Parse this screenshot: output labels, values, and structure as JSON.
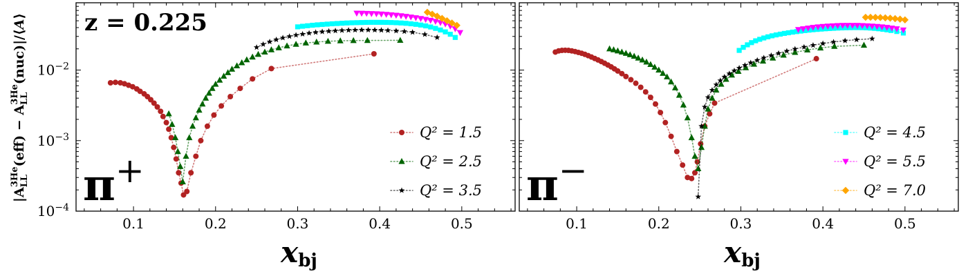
{
  "figure": {
    "y_label": "|A_LL^3He(eff) − A_LL^3He(nuc)|/⟨A⟩",
    "y_label_parts": {
      "bar_open": "|",
      "a1": "A",
      "a1_sub": "LL",
      "a1_sup": "3He",
      "a1_arg": "(eff) − ",
      "a2": "A",
      "a2_sub": "LL",
      "a2_sup": "3He",
      "a2_arg": "(nuc)|/⟨",
      "a3": "A",
      "close": "⟩"
    },
    "z_label": "z = 0.225"
  },
  "chart_data": [
    {
      "type": "scatter",
      "panel_label": "π",
      "panel_label_sup": "+",
      "xlabel": "x",
      "xlabel_sub": "bj",
      "ylabel": "|A_LL^3He(eff) − A_LL^3He(nuc)|/⟨A⟩",
      "yscale": "log",
      "xlim": [
        0.03,
        0.565
      ],
      "ylim": [
        0.0001,
        0.09
      ],
      "xticks": [
        0.1,
        0.2,
        0.3,
        0.4,
        0.5
      ],
      "xtick_labels": [
        "0.1",
        "0.2",
        "0.3",
        "0.4",
        "0.5"
      ],
      "yticks": [
        0.0001,
        0.001,
        0.01
      ],
      "legend_position": "lower-right",
      "series": [
        {
          "name": "Q² = 1.5",
          "legend_label": "Q² = 1.5",
          "in_legend": true,
          "marker": "circle",
          "color": "#b22222",
          "x": [
            0.072,
            0.078,
            0.084,
            0.089,
            0.094,
            0.099,
            0.104,
            0.108,
            0.113,
            0.117,
            0.121,
            0.125,
            0.129,
            0.133,
            0.136,
            0.14,
            0.143,
            0.146,
            0.149,
            0.152,
            0.155,
            0.158,
            0.161,
            0.165,
            0.17,
            0.176,
            0.182,
            0.19,
            0.198,
            0.207,
            0.218,
            0.23,
            0.245,
            0.268,
            0.393
          ],
          "y": [
            0.0066,
            0.0067,
            0.0066,
            0.0064,
            0.0061,
            0.0058,
            0.0054,
            0.005,
            0.0046,
            0.0042,
            0.0038,
            0.0034,
            0.003,
            0.0026,
            0.0022,
            0.0018,
            0.00145,
            0.0011,
            0.0008,
            0.00055,
            0.00035,
            0.00025,
            0.00017,
            0.00019,
            0.00035,
            0.0006,
            0.001,
            0.0016,
            0.0023,
            0.0031,
            0.0042,
            0.0055,
            0.0075,
            0.0105,
            0.017
          ]
        },
        {
          "name": "Q² = 2.5",
          "legend_label": "Q² = 2.5",
          "in_legend": true,
          "marker": "triangle",
          "color": "#006400",
          "x": [
            0.143,
            0.147,
            0.151,
            0.154,
            0.157,
            0.16,
            0.164,
            0.168,
            0.172,
            0.176,
            0.18,
            0.184,
            0.188,
            0.192,
            0.196,
            0.2,
            0.205,
            0.21,
            0.215,
            0.22,
            0.226,
            0.232,
            0.238,
            0.245,
            0.252,
            0.26,
            0.268,
            0.277,
            0.287,
            0.298,
            0.31,
            0.323,
            0.337,
            0.352,
            0.368,
            0.385,
            0.425
          ],
          "y": [
            0.0024,
            0.0017,
            0.0011,
            0.0007,
            0.00043,
            0.00026,
            0.0006,
            0.0011,
            0.0016,
            0.0021,
            0.0027,
            0.0033,
            0.004,
            0.0047,
            0.0055,
            0.0063,
            0.0072,
            0.0082,
            0.0092,
            0.0103,
            0.0115,
            0.0127,
            0.014,
            0.0153,
            0.0167,
            0.018,
            0.0194,
            0.0207,
            0.022,
            0.0232,
            0.0242,
            0.025,
            0.0256,
            0.026,
            0.0262,
            0.0263,
            0.0264
          ]
        },
        {
          "name": "Q² = 3.5",
          "legend_label": "Q² = 3.5",
          "in_legend": true,
          "marker": "star",
          "color": "#000000",
          "x": [
            0.25,
            0.258,
            0.266,
            0.274,
            0.282,
            0.29,
            0.298,
            0.306,
            0.314,
            0.322,
            0.33,
            0.338,
            0.346,
            0.354,
            0.362,
            0.37,
            0.378,
            0.386,
            0.394,
            0.402,
            0.41,
            0.42,
            0.43,
            0.44,
            0.455,
            0.47
          ],
          "y": [
            0.021,
            0.0232,
            0.0252,
            0.027,
            0.0286,
            0.03,
            0.0313,
            0.0324,
            0.0334,
            0.0343,
            0.035,
            0.0356,
            0.0361,
            0.0365,
            0.0368,
            0.037,
            0.0371,
            0.0371,
            0.037,
            0.0368,
            0.0365,
            0.036,
            0.0353,
            0.0344,
            0.032,
            0.029
          ]
        },
        {
          "name": "Q² = 4.5",
          "in_legend": false,
          "marker": "square",
          "color": "#00ffff",
          "x": [
            0.3,
            0.306,
            0.312,
            0.318,
            0.324,
            0.33,
            0.336,
            0.342,
            0.348,
            0.354,
            0.36,
            0.366,
            0.372,
            0.378,
            0.384,
            0.39,
            0.396,
            0.402,
            0.408,
            0.414,
            0.42,
            0.426,
            0.432,
            0.438,
            0.444,
            0.45,
            0.456,
            0.462,
            0.468,
            0.474,
            0.48,
            0.486,
            0.492
          ],
          "y": [
            0.041,
            0.0418,
            0.0425,
            0.0432,
            0.0438,
            0.0443,
            0.0448,
            0.0453,
            0.0457,
            0.0461,
            0.0465,
            0.0468,
            0.047,
            0.0472,
            0.0474,
            0.0475,
            0.0475,
            0.0475,
            0.0474,
            0.0472,
            0.0469,
            0.0465,
            0.046,
            0.0453,
            0.0445,
            0.0435,
            0.0423,
            0.0408,
            0.039,
            0.037,
            0.0348,
            0.0322,
            0.029
          ]
        },
        {
          "name": "Q² = 5.5",
          "in_legend": false,
          "marker": "triangle-down",
          "color": "#ff00ff",
          "x": [
            0.372,
            0.378,
            0.384,
            0.39,
            0.396,
            0.402,
            0.408,
            0.414,
            0.42,
            0.426,
            0.432,
            0.438,
            0.444,
            0.45,
            0.456,
            0.462,
            0.468,
            0.474,
            0.48,
            0.486,
            0.492,
            0.498
          ],
          "y": [
            0.064,
            0.0638,
            0.0636,
            0.0632,
            0.0628,
            0.0622,
            0.0615,
            0.0607,
            0.0598,
            0.0588,
            0.0577,
            0.0565,
            0.0552,
            0.0538,
            0.0523,
            0.0507,
            0.049,
            0.0471,
            0.045,
            0.042,
            0.0385,
            0.034
          ]
        },
        {
          "name": "Q² = 7.0",
          "in_legend": false,
          "marker": "diamond",
          "color": "#ffa500",
          "x": [
            0.458,
            0.464,
            0.47,
            0.476,
            0.482,
            0.488,
            0.494
          ],
          "y": [
            0.066,
            0.062,
            0.058,
            0.054,
            0.05,
            0.0465,
            0.043
          ]
        }
      ]
    },
    {
      "type": "scatter",
      "panel_label": "π",
      "panel_label_sup": "−",
      "xlabel": "x",
      "xlabel_sub": "bj",
      "yscale": "log",
      "xlim": [
        0.03,
        0.565
      ],
      "ylim": [
        0.0001,
        0.09
      ],
      "xticks": [
        0.1,
        0.2,
        0.3,
        0.4,
        0.5
      ],
      "xtick_labels": [
        "0.1",
        "0.2",
        "0.3",
        "0.4",
        "0.5"
      ],
      "yticks": [
        0.0001,
        0.001,
        0.01
      ],
      "legend_position": "lower-right",
      "series": [
        {
          "name": "Q² = 1.5",
          "in_legend": false,
          "marker": "circle",
          "color": "#b22222",
          "x": [
            0.074,
            0.078,
            0.082,
            0.086,
            0.09,
            0.094,
            0.098,
            0.102,
            0.106,
            0.11,
            0.114,
            0.118,
            0.122,
            0.126,
            0.13,
            0.134,
            0.138,
            0.142,
            0.146,
            0.15,
            0.155,
            0.16,
            0.166,
            0.172,
            0.178,
            0.184,
            0.19,
            0.196,
            0.202,
            0.208,
            0.215,
            0.222,
            0.229,
            0.235,
            0.24,
            0.244,
            0.247,
            0.251,
            0.256,
            0.262,
            0.268,
            0.392
          ],
          "y": [
            0.018,
            0.0187,
            0.019,
            0.0191,
            0.019,
            0.0187,
            0.0183,
            0.0178,
            0.0173,
            0.0167,
            0.016,
            0.0153,
            0.0146,
            0.0139,
            0.0132,
            0.0125,
            0.0118,
            0.0111,
            0.0104,
            0.0097,
            0.0089,
            0.0081,
            0.0073,
            0.0065,
            0.0057,
            0.0049,
            0.0041,
            0.0033,
            0.0025,
            0.0018,
            0.00115,
            0.0007,
            0.00045,
            0.0003,
            0.00029,
            0.00035,
            0.0005,
            0.0009,
            0.0016,
            0.0024,
            0.0034,
            0.0145
          ]
        },
        {
          "name": "Q² = 2.5",
          "in_legend": false,
          "marker": "triangle",
          "color": "#006400",
          "x": [
            0.14,
            0.145,
            0.15,
            0.155,
            0.16,
            0.165,
            0.17,
            0.175,
            0.18,
            0.185,
            0.19,
            0.195,
            0.2,
            0.205,
            0.21,
            0.215,
            0.22,
            0.225,
            0.23,
            0.235,
            0.24,
            0.244,
            0.248,
            0.252,
            0.256,
            0.26,
            0.265,
            0.27,
            0.276,
            0.282,
            0.289,
            0.297,
            0.306,
            0.316,
            0.327,
            0.339,
            0.352,
            0.366,
            0.381,
            0.397,
            0.414,
            0.45
          ],
          "y": [
            0.02,
            0.0194,
            0.0187,
            0.018,
            0.0173,
            0.0165,
            0.0157,
            0.0148,
            0.0139,
            0.013,
            0.012,
            0.011,
            0.01,
            0.009,
            0.008,
            0.0068,
            0.0056,
            0.0044,
            0.0032,
            0.0021,
            0.0011,
            0.0006,
            0.0004,
            0.0008,
            0.0016,
            0.0028,
            0.004,
            0.0052,
            0.0063,
            0.0074,
            0.0085,
            0.0096,
            0.0108,
            0.0121,
            0.0134,
            0.0148,
            0.0163,
            0.0178,
            0.0193,
            0.0206,
            0.0217,
            0.0225
          ]
        },
        {
          "name": "Q² = 3.5",
          "in_legend": false,
          "marker": "star",
          "color": "#000000",
          "x": [
            0.248,
            0.252,
            0.256,
            0.26,
            0.265,
            0.27,
            0.275,
            0.28,
            0.286,
            0.292,
            0.298,
            0.305,
            0.312,
            0.32,
            0.328,
            0.337,
            0.346,
            0.356,
            0.366,
            0.377,
            0.388,
            0.4,
            0.413,
            0.427,
            0.441,
            0.46
          ],
          "y": [
            0.00016,
            0.0016,
            0.003,
            0.0041,
            0.0052,
            0.0062,
            0.0071,
            0.008,
            0.0089,
            0.0098,
            0.0107,
            0.0117,
            0.0127,
            0.0138,
            0.0149,
            0.0161,
            0.0173,
            0.0186,
            0.0199,
            0.0212,
            0.0225,
            0.0238,
            0.025,
            0.0261,
            0.027,
            0.0278
          ]
        },
        {
          "name": "Q² = 4.5",
          "legend_label": "Q² = 4.5",
          "in_legend": true,
          "marker": "square",
          "color": "#00ffff",
          "x": [
            0.298,
            0.303,
            0.308,
            0.313,
            0.318,
            0.323,
            0.328,
            0.333,
            0.338,
            0.343,
            0.348,
            0.353,
            0.358,
            0.363,
            0.368,
            0.373,
            0.378,
            0.383,
            0.388,
            0.393,
            0.398,
            0.403,
            0.408,
            0.413,
            0.418,
            0.423,
            0.428,
            0.433,
            0.438,
            0.443,
            0.448,
            0.453,
            0.458,
            0.463,
            0.468,
            0.473,
            0.478,
            0.483,
            0.49,
            0.498
          ],
          "y": [
            0.019,
            0.021,
            0.0228,
            0.0245,
            0.026,
            0.0273,
            0.0285,
            0.0296,
            0.0306,
            0.0315,
            0.0323,
            0.0331,
            0.0338,
            0.0345,
            0.0351,
            0.0357,
            0.0363,
            0.0368,
            0.0373,
            0.0377,
            0.0381,
            0.0385,
            0.0388,
            0.0391,
            0.0394,
            0.0396,
            0.0398,
            0.0399,
            0.04,
            0.04,
            0.0399,
            0.0397,
            0.0394,
            0.039,
            0.0385,
            0.0379,
            0.0372,
            0.0364,
            0.0352,
            0.0335
          ]
        },
        {
          "name": "Q² = 5.5",
          "legend_label": "Q² = 5.5",
          "in_legend": true,
          "marker": "triangle-down",
          "color": "#ff00ff",
          "x": [
            0.37,
            0.376,
            0.382,
            0.388,
            0.394,
            0.4,
            0.406,
            0.412,
            0.418,
            0.424,
            0.43,
            0.436,
            0.442,
            0.448,
            0.454,
            0.46,
            0.466,
            0.472,
            0.478,
            0.484,
            0.49,
            0.498
          ],
          "y": [
            0.0375,
            0.0385,
            0.0394,
            0.0402,
            0.0409,
            0.0415,
            0.042,
            0.0424,
            0.0427,
            0.0429,
            0.043,
            0.043,
            0.0429,
            0.0427,
            0.0424,
            0.042,
            0.0415,
            0.0409,
            0.0402,
            0.0394,
            0.0385,
            0.037
          ]
        },
        {
          "name": "Q² = 7.0",
          "legend_label": "Q² = 7.0",
          "in_legend": true,
          "marker": "diamond",
          "color": "#ffa500",
          "x": [
            0.452,
            0.458,
            0.464,
            0.47,
            0.476,
            0.482,
            0.488,
            0.494,
            0.5
          ],
          "y": [
            0.056,
            0.056,
            0.0558,
            0.0555,
            0.055,
            0.0544,
            0.0536,
            0.0527,
            0.0515
          ]
        }
      ]
    }
  ]
}
